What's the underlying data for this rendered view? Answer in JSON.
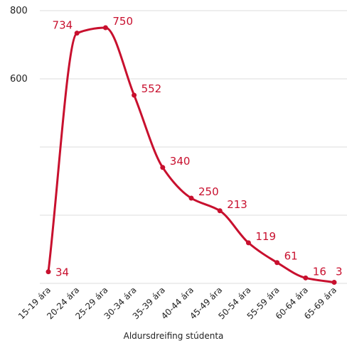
{
  "chart_data": {
    "type": "line",
    "title": "",
    "xlabel": "Aldursdreifing stúdenta",
    "ylabel": "",
    "categories": [
      "15-19 ára",
      "20-24 ára",
      "25-29 ára",
      "30-34 ára",
      "35-39 ára",
      "40-44 ára",
      "45-49 ára",
      "50-54 ára",
      "55-59 ára",
      "60-64 ára",
      "65-69 ára"
    ],
    "series": [
      {
        "values": [
          34,
          734,
          750,
          552,
          340,
          250,
          213,
          119,
          61,
          16,
          3
        ]
      }
    ],
    "ylim": [
      0,
      800
    ],
    "yticks": [
      600,
      800
    ],
    "grid": true,
    "smooth": true,
    "colors": {
      "line": "#c8102e",
      "grid": "#dddddd",
      "text": "#222222"
    }
  }
}
